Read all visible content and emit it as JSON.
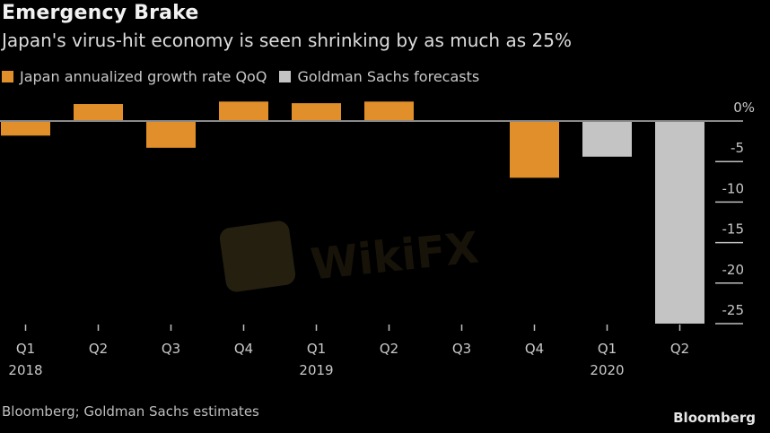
{
  "header": {
    "title": "Emergency Brake",
    "subtitle": "Japan's virus-hit economy is seen shrinking by as much as 25%"
  },
  "legend": [
    {
      "label": "Japan annualized growth rate QoQ",
      "color": "#e08f2a"
    },
    {
      "label": "Goldman Sachs forecasts",
      "color": "#c4c4c4"
    }
  ],
  "footer": {
    "source": "Bloomberg; Goldman Sachs estimates",
    "brand": "Bloomberg"
  },
  "watermark": {
    "text": "WikiFX"
  },
  "chart_data": {
    "type": "bar",
    "title": "Emergency Brake",
    "subtitle": "Japan's virus-hit economy is seen shrinking by as much as 25%",
    "xlabel": "",
    "ylabel": "",
    "categories": [
      "Q1 2018",
      "Q2 2018",
      "Q3 2018",
      "Q4 2018",
      "Q1 2019",
      "Q2 2019",
      "Q3 2019",
      "Q4 2019",
      "Q1 2020",
      "Q2 2020"
    ],
    "x_tick_labels": [
      {
        "quarter": "Q1",
        "year": "2018"
      },
      {
        "quarter": "Q2",
        "year": ""
      },
      {
        "quarter": "Q3",
        "year": ""
      },
      {
        "quarter": "Q4",
        "year": ""
      },
      {
        "quarter": "Q1",
        "year": "2019"
      },
      {
        "quarter": "Q2",
        "year": ""
      },
      {
        "quarter": "Q3",
        "year": ""
      },
      {
        "quarter": "Q4",
        "year": ""
      },
      {
        "quarter": "Q1",
        "year": "2020"
      },
      {
        "quarter": "Q2",
        "year": ""
      }
    ],
    "series": [
      {
        "name": "Japan annualized growth rate QoQ",
        "color": "#e08f2a",
        "values": [
          -1.8,
          2.1,
          -3.3,
          2.4,
          2.2,
          2.4,
          0.1,
          -7.0,
          null,
          null
        ]
      },
      {
        "name": "Goldman Sachs forecasts",
        "color": "#c4c4c4",
        "values": [
          null,
          null,
          null,
          null,
          null,
          null,
          null,
          null,
          -4.4,
          -25.0
        ]
      }
    ],
    "y_ticks": [
      0,
      -5,
      -10,
      -15,
      -20,
      -25
    ],
    "y_tick_labels": [
      "0%",
      "-5",
      "-10",
      "-15",
      "-20",
      "-25"
    ],
    "ylim": [
      -25,
      2.5
    ],
    "y_axis_position": "right",
    "legend_position": "top-left",
    "grid": false
  }
}
